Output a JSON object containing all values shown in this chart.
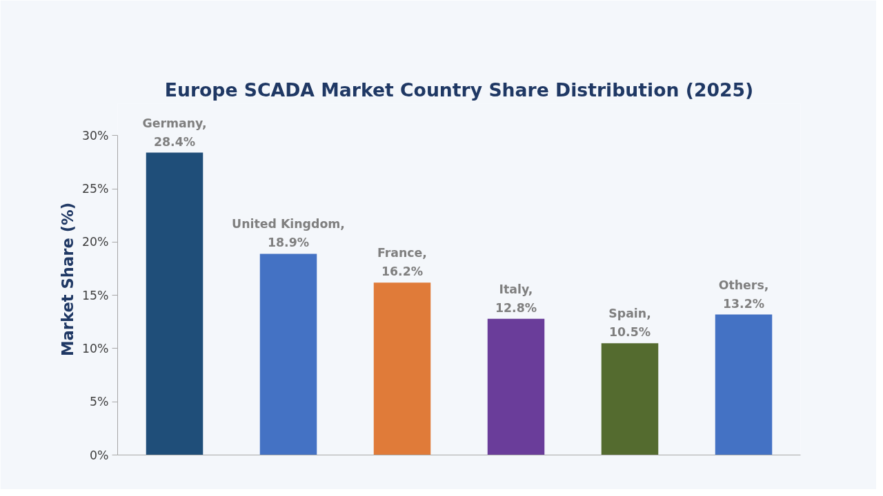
{
  "chart_data": {
    "type": "bar",
    "title": "Europe SCADA Market Country Share Distribution (2025)",
    "ylabel": "Market Share (%)",
    "categories": [
      null,
      null,
      null,
      null,
      null,
      null
    ],
    "values": [
      28.4,
      18.9,
      16.2,
      12.8,
      10.5,
      13.2
    ],
    "colors": [
      "#1f4e79",
      "#4472c4",
      "#e07b39",
      "#6a3d9a",
      "#546b2f",
      "#4472c4"
    ],
    "value_labels": [
      "Germany,\n28.4%",
      "United Kingdom,\n18.9%",
      "France,\n16.2%",
      "Italy,\n12.8%",
      "Spain,\n10.5%",
      "Others,\n13.2%"
    ],
    "ylim": [
      0,
      30
    ],
    "yticks": [
      {
        "value": 0,
        "label": "0%"
      },
      {
        "value": 5,
        "label": "5%"
      },
      {
        "value": 10,
        "label": "10%"
      },
      {
        "value": 15,
        "label": "15%"
      },
      {
        "value": 20,
        "label": "20%"
      },
      {
        "value": 25,
        "label": "25%"
      },
      {
        "value": 30,
        "label": "30%"
      }
    ],
    "grid": false
  }
}
